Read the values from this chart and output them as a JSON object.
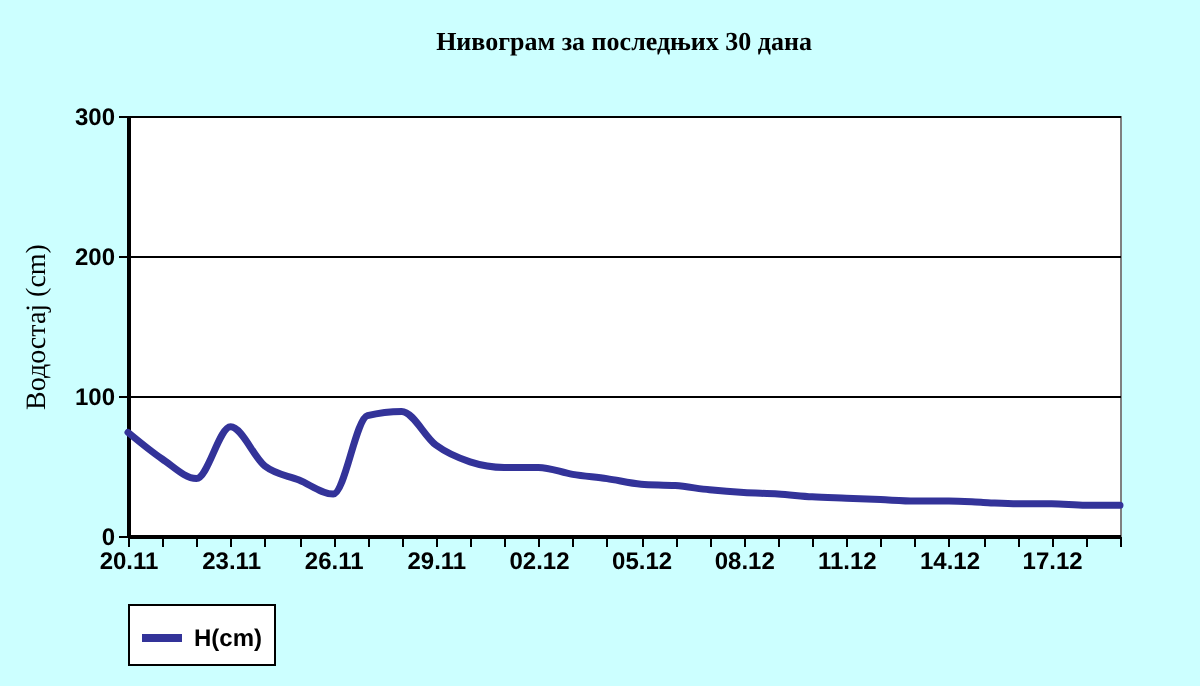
{
  "chart_data": {
    "type": "line",
    "title": "Нивограм за последњих 30 дана",
    "ylabel": "Водостај (cm)",
    "categories": [
      "20.11",
      null,
      null,
      "23.11",
      null,
      null,
      "26.11",
      null,
      null,
      "29.11",
      null,
      null,
      "02.12",
      null,
      null,
      "05.12",
      null,
      null,
      "08.12",
      null,
      null,
      "11.12",
      null,
      null,
      "14.12",
      null,
      null,
      "17.12",
      null,
      null
    ],
    "series": [
      {
        "name": "H(cm)",
        "color": "#333399",
        "values": [
          74,
          55,
          41,
          78,
          50,
          40,
          30,
          86,
          89,
          65,
          53,
          49,
          49,
          44,
          41,
          37,
          36,
          33,
          31,
          30,
          28,
          27,
          26,
          25,
          25,
          24,
          23,
          23,
          22,
          22
        ]
      }
    ],
    "ylim": [
      0,
      300
    ],
    "yticks": [
      0,
      100,
      200,
      300
    ],
    "grid": "y",
    "legend": "bottom",
    "marker": "none",
    "line_style": "solid"
  }
}
